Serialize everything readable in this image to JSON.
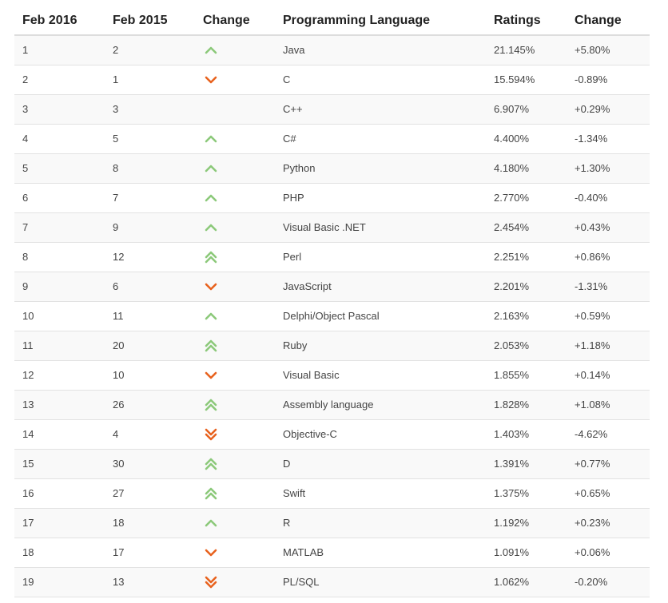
{
  "table": {
    "headers": [
      "Feb 2016",
      "Feb 2015",
      "Change",
      "Programming Language",
      "Ratings",
      "Change"
    ],
    "colors": {
      "up": "#8cc97a",
      "down": "#e8621e"
    },
    "rows": [
      {
        "rank_2016": "1",
        "rank_2015": "2",
        "trend": "up-icon",
        "language": "Java",
        "rating": "21.145%",
        "change": "+5.80%"
      },
      {
        "rank_2016": "2",
        "rank_2015": "1",
        "trend": "down-icon",
        "language": "C",
        "rating": "15.594%",
        "change": "-0.89%"
      },
      {
        "rank_2016": "3",
        "rank_2015": "3",
        "trend": "none",
        "language": "C++",
        "rating": "6.907%",
        "change": "+0.29%"
      },
      {
        "rank_2016": "4",
        "rank_2015": "5",
        "trend": "up-icon",
        "language": "C#",
        "rating": "4.400%",
        "change": "-1.34%"
      },
      {
        "rank_2016": "5",
        "rank_2015": "8",
        "trend": "up-icon",
        "language": "Python",
        "rating": "4.180%",
        "change": "+1.30%"
      },
      {
        "rank_2016": "6",
        "rank_2015": "7",
        "trend": "up-icon",
        "language": "PHP",
        "rating": "2.770%",
        "change": "-0.40%"
      },
      {
        "rank_2016": "7",
        "rank_2015": "9",
        "trend": "up-icon",
        "language": "Visual Basic .NET",
        "rating": "2.454%",
        "change": "+0.43%"
      },
      {
        "rank_2016": "8",
        "rank_2015": "12",
        "trend": "double-up-icon",
        "language": "Perl",
        "rating": "2.251%",
        "change": "+0.86%"
      },
      {
        "rank_2016": "9",
        "rank_2015": "6",
        "trend": "down-icon",
        "language": "JavaScript",
        "rating": "2.201%",
        "change": "-1.31%"
      },
      {
        "rank_2016": "10",
        "rank_2015": "11",
        "trend": "up-icon",
        "language": "Delphi/Object Pascal",
        "rating": "2.163%",
        "change": "+0.59%"
      },
      {
        "rank_2016": "11",
        "rank_2015": "20",
        "trend": "double-up-icon",
        "language": "Ruby",
        "rating": "2.053%",
        "change": "+1.18%"
      },
      {
        "rank_2016": "12",
        "rank_2015": "10",
        "trend": "down-icon",
        "language": "Visual Basic",
        "rating": "1.855%",
        "change": "+0.14%"
      },
      {
        "rank_2016": "13",
        "rank_2015": "26",
        "trend": "double-up-icon",
        "language": "Assembly language",
        "rating": "1.828%",
        "change": "+1.08%"
      },
      {
        "rank_2016": "14",
        "rank_2015": "4",
        "trend": "double-down-icon",
        "language": "Objective-C",
        "rating": "1.403%",
        "change": "-4.62%"
      },
      {
        "rank_2016": "15",
        "rank_2015": "30",
        "trend": "double-up-icon",
        "language": "D",
        "rating": "1.391%",
        "change": "+0.77%"
      },
      {
        "rank_2016": "16",
        "rank_2015": "27",
        "trend": "double-up-icon",
        "language": "Swift",
        "rating": "1.375%",
        "change": "+0.65%"
      },
      {
        "rank_2016": "17",
        "rank_2015": "18",
        "trend": "up-icon",
        "language": "R",
        "rating": "1.192%",
        "change": "+0.23%"
      },
      {
        "rank_2016": "18",
        "rank_2015": "17",
        "trend": "down-icon",
        "language": "MATLAB",
        "rating": "1.091%",
        "change": "+0.06%"
      },
      {
        "rank_2016": "19",
        "rank_2015": "13",
        "trend": "double-down-icon",
        "language": "PL/SQL",
        "rating": "1.062%",
        "change": "-0.20%"
      }
    ]
  }
}
